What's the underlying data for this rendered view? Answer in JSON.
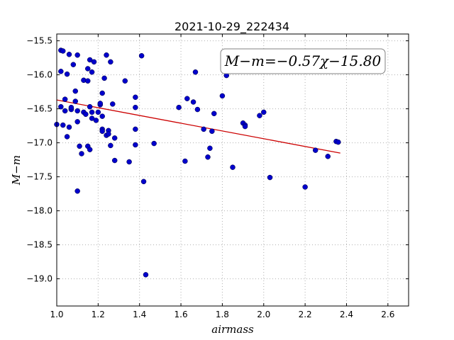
{
  "chart_data": {
    "type": "scatter",
    "title": "2021-10-29_222434",
    "xlabel": "airmass",
    "ylabel": "M−m",
    "xlim": [
      1.0,
      2.7
    ],
    "ylim": [
      -19.4,
      -15.4
    ],
    "x_ticks": [
      1.0,
      1.2,
      1.4,
      1.6,
      1.8,
      2.0,
      2.2,
      2.4,
      2.6
    ],
    "x_tick_labels": [
      "1.0",
      "1.2",
      "1.4",
      "1.6",
      "1.8",
      "2.0",
      "2.2",
      "2.4",
      "2.6"
    ],
    "y_ticks": [
      -15.5,
      -16.0,
      -16.5,
      -17.0,
      -17.5,
      -18.0,
      -18.5,
      -19.0
    ],
    "y_tick_labels": [
      "−15.5",
      "−16.0",
      "−16.5",
      "−17.0",
      "−17.5",
      "−18.0",
      "−18.5",
      "−19.0"
    ],
    "grid": true,
    "annotation": "M−m=−0.57χ−15.80",
    "fit_line": {
      "slope": -0.57,
      "intercept": -15.8,
      "x_range": [
        1.0,
        2.37
      ],
      "color": "#cc0000"
    },
    "marker_color": "#0000cc",
    "points": [
      [
        1.0,
        -16.73
      ],
      [
        1.02,
        -15.64
      ],
      [
        1.03,
        -15.65
      ],
      [
        1.02,
        -15.95
      ],
      [
        1.02,
        -16.47
      ],
      [
        1.03,
        -16.74
      ],
      [
        1.04,
        -16.53
      ],
      [
        1.04,
        -16.36
      ],
      [
        1.05,
        -15.99
      ],
      [
        1.05,
        -16.91
      ],
      [
        1.06,
        -15.7
      ],
      [
        1.06,
        -16.77
      ],
      [
        1.07,
        -16.51
      ],
      [
        1.07,
        -16.48
      ],
      [
        1.08,
        -15.85
      ],
      [
        1.09,
        -16.24
      ],
      [
        1.09,
        -16.39
      ],
      [
        1.1,
        -16.53
      ],
      [
        1.1,
        -16.69
      ],
      [
        1.1,
        -15.71
      ],
      [
        1.1,
        -17.71
      ],
      [
        1.11,
        -17.05
      ],
      [
        1.12,
        -17.16
      ],
      [
        1.13,
        -16.55
      ],
      [
        1.13,
        -16.08
      ],
      [
        1.14,
        -16.58
      ],
      [
        1.15,
        -16.09
      ],
      [
        1.15,
        -15.91
      ],
      [
        1.15,
        -17.05
      ],
      [
        1.16,
        -17.1
      ],
      [
        1.16,
        -15.78
      ],
      [
        1.16,
        -16.47
      ],
      [
        1.17,
        -15.96
      ],
      [
        1.17,
        -16.55
      ],
      [
        1.17,
        -16.64
      ],
      [
        1.18,
        -15.81
      ],
      [
        1.19,
        -16.67
      ],
      [
        1.2,
        -16.55
      ],
      [
        1.21,
        -16.44
      ],
      [
        1.21,
        -16.42
      ],
      [
        1.22,
        -16.27
      ],
      [
        1.22,
        -16.8
      ],
      [
        1.22,
        -16.83
      ],
      [
        1.22,
        -16.61
      ],
      [
        1.23,
        -16.05
      ],
      [
        1.24,
        -15.71
      ],
      [
        1.24,
        -16.89
      ],
      [
        1.25,
        -16.82
      ],
      [
        1.25,
        -16.87
      ],
      [
        1.26,
        -17.04
      ],
      [
        1.26,
        -15.81
      ],
      [
        1.27,
        -16.43
      ],
      [
        1.28,
        -16.93
      ],
      [
        1.28,
        -17.26
      ],
      [
        1.33,
        -16.09
      ],
      [
        1.35,
        -17.28
      ],
      [
        1.38,
        -16.48
      ],
      [
        1.38,
        -16.8
      ],
      [
        1.38,
        -17.03
      ],
      [
        1.38,
        -16.33
      ],
      [
        1.41,
        -15.72
      ],
      [
        1.42,
        -17.57
      ],
      [
        1.43,
        -18.94
      ],
      [
        1.47,
        -17.01
      ],
      [
        1.59,
        -16.48
      ],
      [
        1.62,
        -17.27
      ],
      [
        1.63,
        -16.35
      ],
      [
        1.66,
        -16.4
      ],
      [
        1.67,
        -15.96
      ],
      [
        1.68,
        -16.51
      ],
      [
        1.71,
        -16.8
      ],
      [
        1.73,
        -17.21
      ],
      [
        1.74,
        -17.08
      ],
      [
        1.75,
        -16.83
      ],
      [
        1.76,
        -16.57
      ],
      [
        1.8,
        -16.31
      ],
      [
        1.82,
        -16.01
      ],
      [
        1.85,
        -17.36
      ],
      [
        1.9,
        -16.71
      ],
      [
        1.91,
        -16.74
      ],
      [
        1.91,
        -16.76
      ],
      [
        1.98,
        -16.6
      ],
      [
        2.0,
        -16.55
      ],
      [
        2.03,
        -17.51
      ],
      [
        2.2,
        -17.65
      ],
      [
        2.25,
        -17.11
      ],
      [
        2.31,
        -17.2
      ],
      [
        2.35,
        -16.98
      ],
      [
        2.36,
        -16.99
      ]
    ]
  }
}
